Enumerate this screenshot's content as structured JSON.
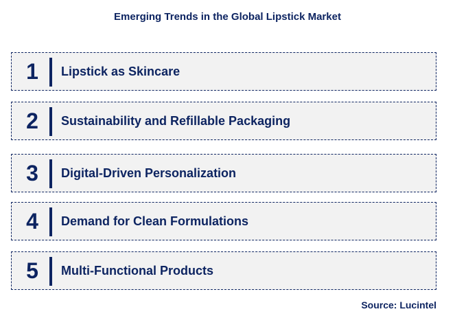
{
  "title": "Emerging Trends in the Global Lipstick Market",
  "items": [
    {
      "number": "1",
      "label": "Lipstick as Skincare"
    },
    {
      "number": "2",
      "label": "Sustainability and Refillable Packaging"
    },
    {
      "number": "3",
      "label": "Digital-Driven Personalization"
    },
    {
      "number": "4",
      "label": "Demand for Clean Formulations"
    },
    {
      "number": "5",
      "label": "Multi-Functional Products"
    }
  ],
  "source": "Source: Lucintel",
  "colors": {
    "primary": "#0d2461",
    "box_fill": "#f2f2f2"
  }
}
